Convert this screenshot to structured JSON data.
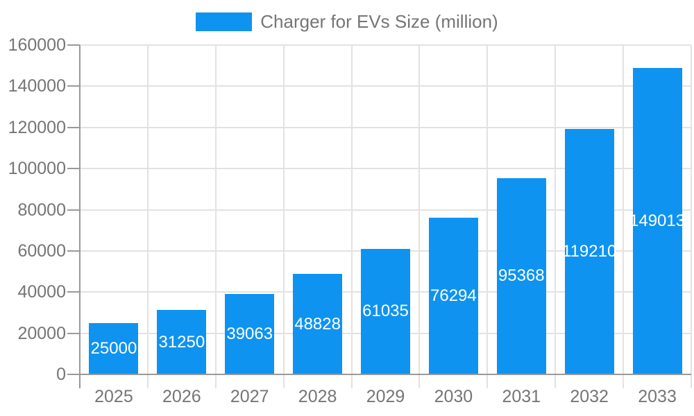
{
  "chart_data": {
    "type": "bar",
    "title": "Charger for EVs Size (million)",
    "legend": "Charger for EVs Size (million)",
    "legend_position": "top-center",
    "categories": [
      "2025",
      "2026",
      "2027",
      "2028",
      "2029",
      "2030",
      "2031",
      "2032",
      "2033"
    ],
    "values": [
      25000,
      31250,
      39063,
      48828,
      61035,
      76294,
      95368,
      119210,
      149013
    ],
    "value_labels": [
      "25000",
      "31250",
      "39063",
      "48828",
      "61035",
      "76294",
      "95368",
      "119210",
      "149013"
    ],
    "xlabel": "",
    "ylabel": "",
    "ylim": [
      0,
      160000
    ],
    "ytick_interval": 20000,
    "ytick_labels": [
      "0",
      "20000",
      "40000",
      "60000",
      "80000",
      "100000",
      "120000",
      "140000",
      "160000"
    ],
    "grid": true,
    "colors": {
      "bar": "#0F93F0",
      "value_label": "#FFFFFF",
      "axis": "#999999",
      "grid": "#E2E2E2",
      "tick_minor": "#E2E2E2",
      "text": "#757575",
      "background": "#FFFFFF"
    }
  }
}
